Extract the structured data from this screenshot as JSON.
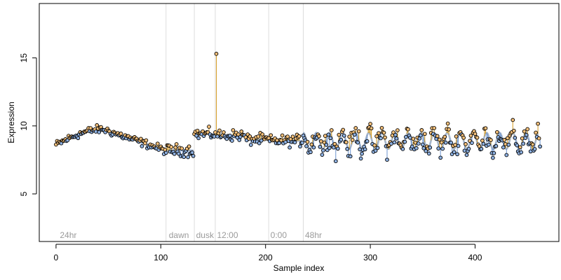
{
  "chart_data": {
    "type": "scatter",
    "title": "",
    "xlabel": "Sample index",
    "ylabel": "Expression",
    "xlim": [
      -16,
      480
    ],
    "ylim": [
      1.5,
      19
    ],
    "x_ticks": [
      0,
      100,
      200,
      300,
      400
    ],
    "y_ticks": [
      5,
      10,
      15
    ],
    "grid": false,
    "legend": "none",
    "colors": {
      "point_fill_orange": "#f5c07a",
      "point_fill_blue": "#8eb1e2",
      "point_edge": "#000000",
      "stem_orange": "#d59a1e",
      "stem_blue": "#6b93cf",
      "fit_line": "#a6b6cc",
      "boundary_line": "#dcdcdc",
      "segment_label": "#9a9a9a"
    },
    "boundaries": [
      105,
      132,
      152,
      203,
      236
    ],
    "segment_labels": [
      {
        "x": 3,
        "text": "24hr"
      },
      {
        "x": 107,
        "text": "dawn"
      },
      {
        "x": 133,
        "text": "dusk"
      },
      {
        "x": 153,
        "text": "12:00"
      },
      {
        "x": 204,
        "text": "0:00"
      },
      {
        "x": 237,
        "text": "48hr"
      }
    ],
    "fit": {
      "segments": [
        {
          "type": "curve",
          "x0": 0,
          "x1": 104
        },
        {
          "type": "flat",
          "x0": 105,
          "x1": 131,
          "y": 8.2
        },
        {
          "type": "flat",
          "x0": 132,
          "x1": 151,
          "y": 9.4
        },
        {
          "type": "flat",
          "x0": 152,
          "x1": 180,
          "y": 9.3
        },
        {
          "type": "flat",
          "x0": 181,
          "x1": 202,
          "y": 9.0
        },
        {
          "type": "flat",
          "x0": 203,
          "x1": 235,
          "y": 8.9
        },
        {
          "type": "oscillating",
          "x0": 236,
          "x1": 460
        }
      ]
    },
    "outlier": {
      "x": 153,
      "y": 15.3
    }
  }
}
